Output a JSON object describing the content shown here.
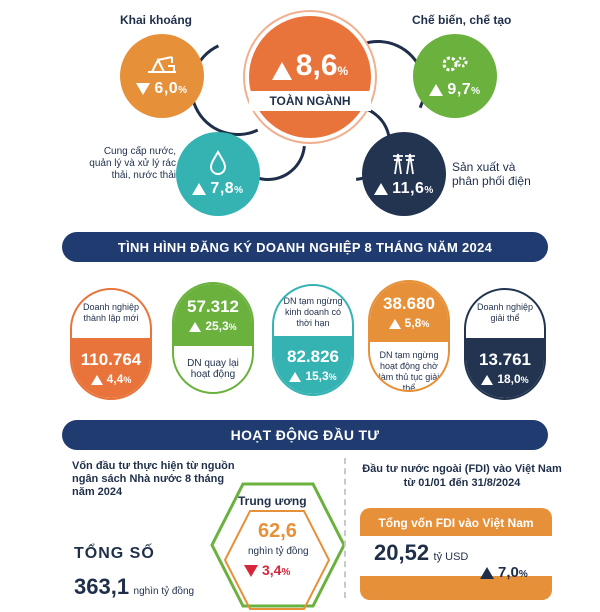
{
  "industry": {
    "total": {
      "value": "8,6",
      "unit": "%",
      "label": "TOÀN NGÀNH",
      "direction": "up"
    },
    "sectors": [
      {
        "name": "Khai khoáng",
        "value": "6,0",
        "unit": "%",
        "direction": "down",
        "icon": "oil-pump-icon",
        "color": "#e6913a"
      },
      {
        "name": "Chế biến, chế tạo",
        "value": "9,7",
        "unit": "%",
        "direction": "up",
        "icon": "gears-icon",
        "color": "#6ab13e"
      },
      {
        "name": "Cung cấp nước, quản lý và xử lý rác thải, nước thải",
        "value": "7,8",
        "unit": "%",
        "direction": "up",
        "icon": "water-drop-icon",
        "color": "#35b3b3"
      },
      {
        "name": "Sản xuất và phân phối điện",
        "value": "11,6",
        "unit": "%",
        "direction": "up",
        "icon": "power-tower-icon",
        "color": "#223450"
      }
    ]
  },
  "banner_registration": "TÌNH HÌNH ĐĂNG KÝ DOANH NGHIỆP 8 THÁNG NĂM 2024",
  "enterprises": [
    {
      "label": "Doanh nghiệp thành lập mới",
      "value": "110.764",
      "pct": "4,4",
      "unit": "%",
      "direction": "up",
      "color": "#e8743b"
    },
    {
      "label": "DN quay lại hoạt động",
      "value": "57.312",
      "pct": "25,3",
      "unit": "%",
      "direction": "up",
      "color": "#6ab13e"
    },
    {
      "label": "DN tạm ngừng kinh doanh có thời hạn",
      "value": "82.826",
      "pct": "15,3",
      "unit": "%",
      "direction": "up",
      "color": "#35b3b3"
    },
    {
      "label": "DN tạm ngừng hoạt động chờ làm thủ tục giải thể",
      "value": "38.680",
      "pct": "5,8",
      "unit": "%",
      "direction": "up",
      "color": "#e6913a"
    },
    {
      "label": "Doanh nghiệp giải thể",
      "value": "13.761",
      "pct": "18,0",
      "unit": "%",
      "direction": "up",
      "color": "#223450"
    }
  ],
  "banner_investment": "HOẠT ĐỘNG ĐẦU TƯ",
  "investment": {
    "state_title": "Vốn đầu tư thực hiện từ nguồn ngân sách Nhà nước 8 tháng năm 2024",
    "central": {
      "label": "Trung ương",
      "value": "62,6",
      "unit": "nghìn tỷ đồng",
      "pct": "3,4",
      "pct_unit": "%",
      "direction": "down"
    },
    "total": {
      "label": "TỔNG SỐ",
      "value": "363,1",
      "unit": "nghìn tỷ đồng"
    },
    "fdi_title": "Đầu tư nước ngoài (FDI) vào Việt Nam từ 01/01 đến 31/8/2024",
    "fdi_box_title": "Tổng vốn FDI vào Việt Nam",
    "fdi_value": "20,52",
    "fdi_unit": "tỷ USD",
    "fdi_pct": "7,0",
    "fdi_pct_unit": "%"
  }
}
